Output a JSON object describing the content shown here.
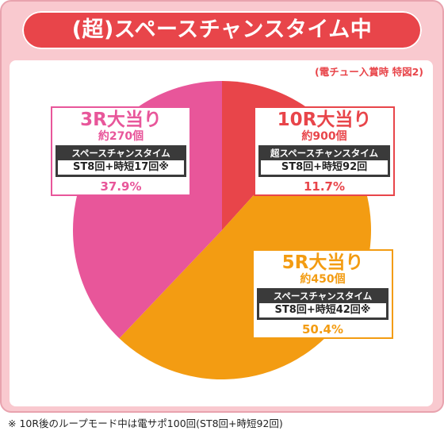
{
  "header": {
    "title": "(超)スペースチャンスタイム中"
  },
  "note": "(電チュー入賞時 特図2)",
  "footnote": "※ 10R後のループモード中は電サポ100回(ST8回+時短92回)",
  "colors": {
    "frame": "#f9c9cf",
    "title_bar": "#e8454a"
  },
  "chart_data": {
    "type": "pie",
    "title": "(超)スペースチャンスタイム中",
    "slices": [
      {
        "label": "10R大当り",
        "count": "約900個",
        "mode": "超スペースチャンスタイム",
        "st": "ST8回+時短92回",
        "pct_text": "11.7%",
        "value": 11.7,
        "color": "#e8454a"
      },
      {
        "label": "5R大当り",
        "count": "約450個",
        "mode": "スペースチャンスタイム",
        "st": "ST8回+時短42回※",
        "pct_text": "50.4%",
        "value": 50.4,
        "color": "#f39c12"
      },
      {
        "label": "3R大当り",
        "count": "約270個",
        "mode": "スペースチャンスタイム",
        "st": "ST8回+時短17回※",
        "pct_text": "37.9%",
        "value": 37.9,
        "color": "#e8569a"
      }
    ]
  }
}
